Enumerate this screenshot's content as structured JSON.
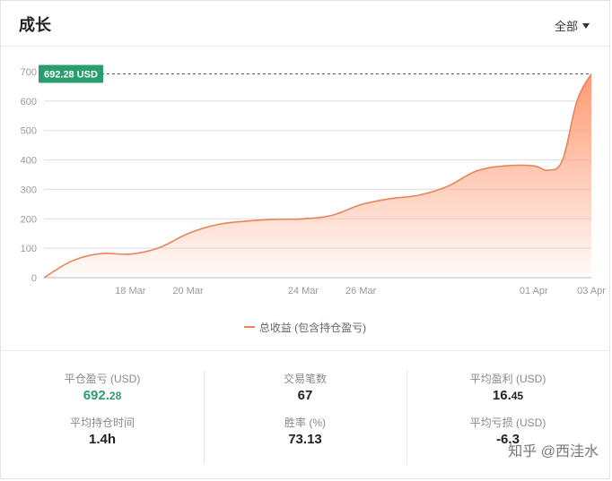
{
  "header": {
    "title": "成长",
    "filter_label": "全部"
  },
  "chart_data": {
    "type": "area",
    "x": [
      "2024-03-15",
      "2024-03-16",
      "2024-03-17",
      "2024-03-18",
      "2024-03-19",
      "2024-03-20",
      "2024-03-21",
      "2024-03-22",
      "2024-03-23",
      "2024-03-24",
      "2024-03-25",
      "2024-03-26",
      "2024-03-27",
      "2024-03-28",
      "2024-03-29",
      "2024-03-30",
      "2024-03-31",
      "2024-04-01",
      "2024-04-01T12:00",
      "2024-04-02",
      "2024-04-02T12:00",
      "2024-04-03"
    ],
    "series": [
      {
        "name": "总收益 (包含持仓盈亏)",
        "values": [
          0,
          58,
          82,
          80,
          102,
          150,
          180,
          192,
          198,
          200,
          212,
          248,
          268,
          280,
          310,
          362,
          380,
          380,
          365,
          400,
          600,
          692.28
        ]
      }
    ],
    "xticks": [
      "18 Mar",
      "20 Mar",
      "24 Mar",
      "26 Mar",
      "01 Apr",
      "03 Apr"
    ],
    "yticks": [
      "0",
      "100",
      "200",
      "300",
      "400",
      "500",
      "600",
      "700"
    ],
    "ylim": [
      0,
      700
    ],
    "grid": true,
    "current_value_label": "692.28 USD",
    "legend_position": "bottom",
    "line_color": "#e8835a",
    "fill_color": "#ff9a72",
    "badge_color": "#2a9d6e"
  },
  "legend": {
    "label": "总收益 (包含持仓盈亏)"
  },
  "stats": {
    "closed_pnl_label": "平仓盈亏 (USD)",
    "closed_pnl_int": "692.",
    "closed_pnl_dec": "28",
    "trades_label": "交易笔数",
    "trades_value": "67",
    "avg_profit_label": "平均盈利 (USD)",
    "avg_profit_int": "16.",
    "avg_profit_dec": "45",
    "avg_hold_label": "平均持仓时间",
    "avg_hold_value": "1.4h",
    "win_rate_label": "胜率 (%)",
    "win_rate_value": "73.13",
    "avg_loss_label": "平均亏损 (USD)",
    "avg_loss_value": "-6.3"
  },
  "watermark": "知乎 @西洼水"
}
